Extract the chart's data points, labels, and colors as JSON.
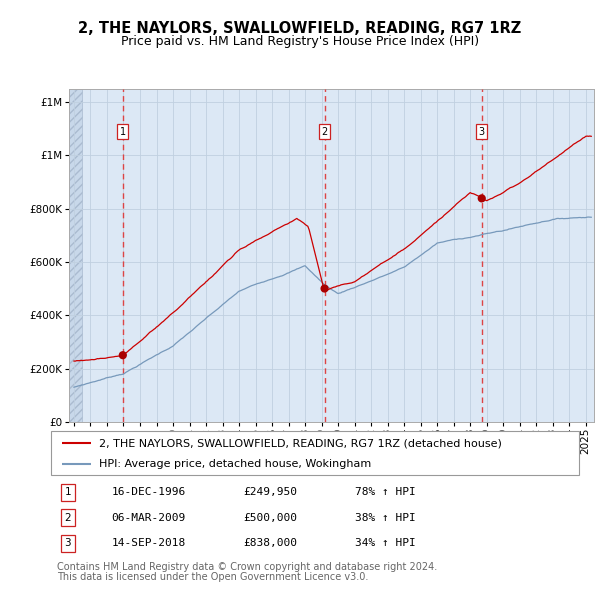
{
  "title": "2, THE NAYLORS, SWALLOWFIELD, READING, RG7 1RZ",
  "subtitle": "Price paid vs. HM Land Registry's House Price Index (HPI)",
  "legend_line1": "2, THE NAYLORS, SWALLOWFIELD, READING, RG7 1RZ (detached house)",
  "legend_line2": "HPI: Average price, detached house, Wokingham",
  "footer1": "Contains HM Land Registry data © Crown copyright and database right 2024.",
  "footer2": "This data is licensed under the Open Government Licence v3.0.",
  "transactions": [
    {
      "num": 1,
      "date": "16-DEC-1996",
      "price": 249950,
      "pct": "78%",
      "dir": "↑",
      "x_year": 1996.96
    },
    {
      "num": 2,
      "date": "06-MAR-2009",
      "price": 500000,
      "pct": "38%",
      "dir": "↑",
      "x_year": 2009.18
    },
    {
      "num": 3,
      "date": "14-SEP-2018",
      "price": 838000,
      "pct": "34%",
      "dir": "↑",
      "x_year": 2018.7
    }
  ],
  "red_line_color": "#cc0000",
  "blue_line_color": "#7799bb",
  "dot_color": "#aa0000",
  "vline_color": "#dd4444",
  "bg_color": "#dce8f5",
  "grid_color": "#c0d0e0",
  "ylim": [
    0,
    1250000
  ],
  "yticks": [
    0,
    200000,
    400000,
    600000,
    800000,
    1000000,
    1200000
  ],
  "xlim_start": 1993.7,
  "xlim_end": 2025.5,
  "hatch_end": 1994.5,
  "title_fontsize": 10.5,
  "subtitle_fontsize": 9,
  "tick_fontsize": 7.5,
  "legend_fontsize": 8,
  "footer_fontsize": 7
}
